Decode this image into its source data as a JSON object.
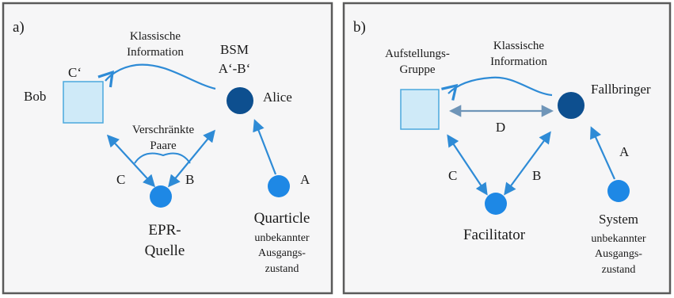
{
  "panel_a": {
    "tag": "a)",
    "bob": "Bob",
    "bob_state": "C‘",
    "classical_1": "Klassische",
    "classical_2": "Information",
    "bsm_1": "BSM",
    "bsm_2": "A‘-B‘",
    "alice": "Alice",
    "entangled_1": "Verschränkte",
    "entangled_2": "Paare",
    "edge_c": "C",
    "edge_b": "B",
    "edge_a": "A",
    "epr_1": "EPR-",
    "epr_2": "Quelle",
    "quarticle": "Quarticle",
    "unknown_1": "unbekannter",
    "unknown_2": "Ausgangs-",
    "unknown_3": "zustand"
  },
  "panel_b": {
    "tag": "b)",
    "setup_1": "Aufstellungs-",
    "setup_2": "Gruppe",
    "classical_1": "Klassische",
    "classical_2": "Information",
    "fallbringer": "Fallbringer",
    "edge_d": "D",
    "edge_c": "C",
    "edge_b": "B",
    "edge_a": "A",
    "facilitator": "Facilitator",
    "system": "System",
    "unknown_1": "unbekannter",
    "unknown_2": "Ausgangs-",
    "unknown_3": "zustand"
  },
  "colors": {
    "frame": "#5a5a5a",
    "panel_bg": "#f6f6f7",
    "arrow": "#2e8bd6",
    "node_light": "#1e88e5",
    "node_dark": "#0d4f8f",
    "box_fill": "#cfeaf8",
    "box_stroke": "#4aa8de",
    "d_arrow": "#6f95b8"
  }
}
